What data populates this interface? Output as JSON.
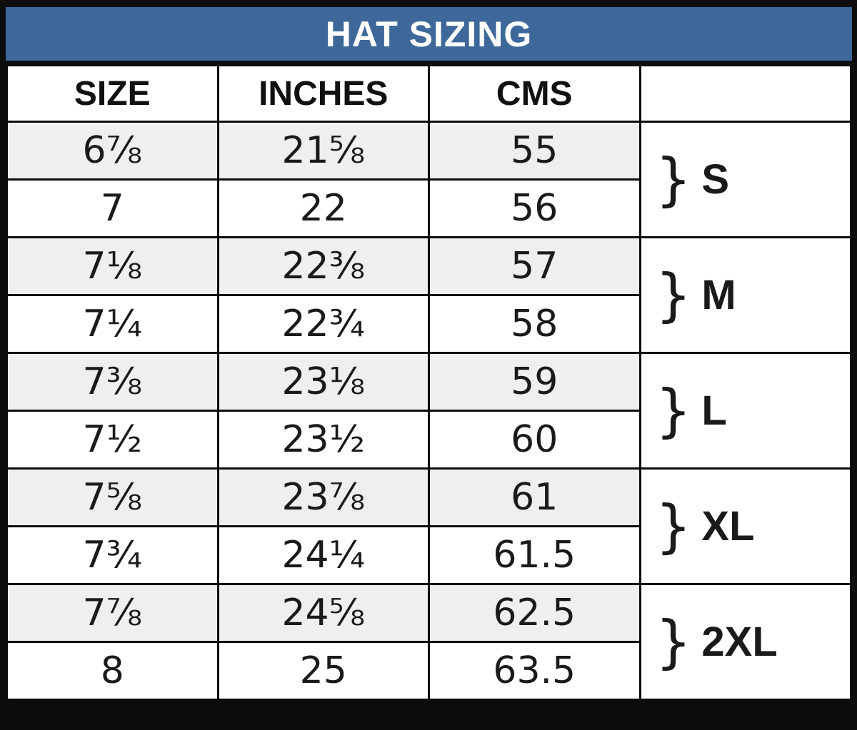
{
  "colors": {
    "title_bg": "#3d6899",
    "title_text": "#ffffff",
    "border": "#0d0d0d",
    "row_alt_bg": "#efefef",
    "row_bg": "#ffffff",
    "text": "#1a1a1a"
  },
  "chart_data": {
    "type": "table",
    "title": "HAT SIZING",
    "columns": [
      "SIZE",
      "INCHES",
      "CMS",
      ""
    ],
    "rows": [
      {
        "size": "6⅞",
        "inches": "21⅝",
        "cms": "55"
      },
      {
        "size": "7",
        "inches": "22",
        "cms": "56"
      },
      {
        "size": "7⅛",
        "inches": "22⅜",
        "cms": "57"
      },
      {
        "size": "7¼",
        "inches": "22¾",
        "cms": "58"
      },
      {
        "size": "7⅜",
        "inches": "23⅛",
        "cms": "59"
      },
      {
        "size": "7½",
        "inches": "23½",
        "cms": "60"
      },
      {
        "size": "7⅝",
        "inches": "23⅞",
        "cms": "61"
      },
      {
        "size": "7¾",
        "inches": "24¼",
        "cms": "61.5"
      },
      {
        "size": "7⅞",
        "inches": "24⅝",
        "cms": "62.5"
      },
      {
        "size": "8",
        "inches": "25",
        "cms": "63.5"
      }
    ],
    "groups": [
      {
        "brace": "}",
        "label": "S",
        "row_span": [
          0,
          1
        ]
      },
      {
        "brace": "}",
        "label": "M",
        "row_span": [
          2,
          3
        ]
      },
      {
        "brace": "}",
        "label": "L",
        "row_span": [
          4,
          5
        ]
      },
      {
        "brace": "}",
        "label": "XL",
        "row_span": [
          6,
          7
        ]
      },
      {
        "brace": "}",
        "label": "2XL",
        "row_span": [
          8,
          9
        ]
      }
    ]
  }
}
